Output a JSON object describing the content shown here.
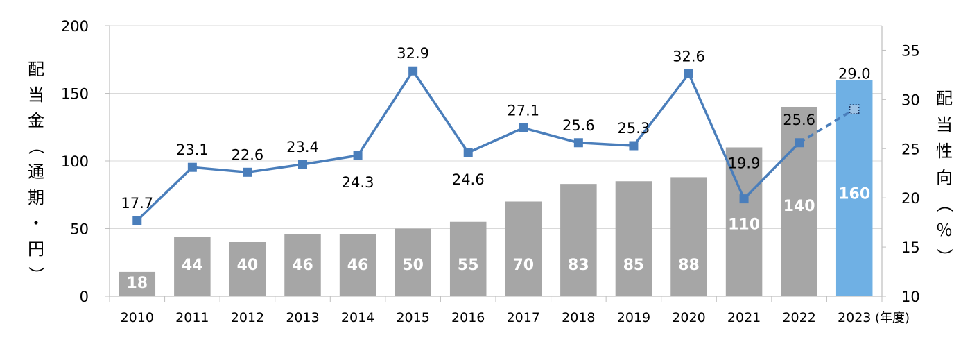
{
  "chart_data": {
    "type": "bar+line",
    "categories": [
      "2010",
      "2011",
      "2012",
      "2013",
      "2014",
      "2015",
      "2016",
      "2017",
      "2018",
      "2019",
      "2020",
      "2021",
      "2022",
      "2023"
    ],
    "x_unit": "(年度)",
    "series": [
      {
        "type": "bar",
        "axis": "left",
        "values": [
          18,
          44,
          40,
          46,
          46,
          50,
          55,
          70,
          83,
          85,
          88,
          110,
          140,
          160
        ],
        "color": "#a6a6a6",
        "highlight_index": 13,
        "highlight_color": "#6fb0e4"
      },
      {
        "type": "line",
        "axis": "right",
        "values": [
          17.7,
          23.1,
          22.6,
          23.4,
          24.3,
          32.9,
          24.6,
          27.1,
          25.6,
          25.3,
          32.6,
          19.9,
          25.6,
          29.0
        ],
        "labels": [
          "17.7",
          "23.1",
          "22.6",
          "23.4",
          "24.3",
          "32.9",
          "24.6",
          "27.1",
          "25.6",
          "25.3",
          "32.6",
          "19.9",
          "25.6",
          "29.0"
        ],
        "color": "#4a7ebb",
        "dashed_from_index": 12
      }
    ],
    "ylabel_left": "配当金（通期・円）",
    "ylabel_right": "配当性向（％）",
    "ylim_left": [
      0,
      200
    ],
    "yticks_left": [
      0,
      50,
      100,
      150,
      200
    ],
    "ylim_right": [
      10,
      37.5
    ],
    "yticks_right": [
      10,
      15,
      20,
      25,
      30,
      35
    ],
    "grid": "horizontal",
    "legend": "none"
  }
}
